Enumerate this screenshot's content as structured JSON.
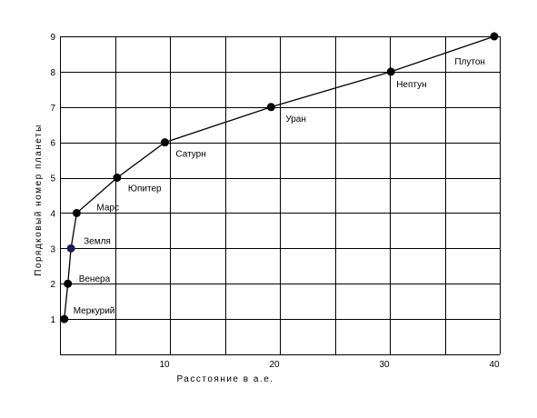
{
  "chart_data": {
    "type": "line",
    "title": "",
    "xlabel": "Расстояние в а.е.",
    "ylabel": "Порядковый номер планеты",
    "xlim": [
      0,
      40
    ],
    "ylim": [
      0,
      9
    ],
    "x_tick_labels": [
      "10",
      "20",
      "30",
      "40"
    ],
    "y_tick_labels": [
      "1",
      "2",
      "3",
      "4",
      "5",
      "6",
      "7",
      "8",
      "9"
    ],
    "grid": true,
    "series": [
      {
        "points": [
          {
            "label": "Меркурий",
            "x": 0.39,
            "y": 1
          },
          {
            "label": "Венера",
            "x": 0.72,
            "y": 2
          },
          {
            "label": "Земля",
            "x": 1.0,
            "y": 3
          },
          {
            "label": "Марс",
            "x": 1.52,
            "y": 4
          },
          {
            "label": "Юпитер",
            "x": 5.2,
            "y": 5
          },
          {
            "label": "Сатурн",
            "x": 9.54,
            "y": 6
          },
          {
            "label": "Уран",
            "x": 19.2,
            "y": 7
          },
          {
            "label": "Нептун",
            "x": 30.1,
            "y": 8
          },
          {
            "label": "Плутон",
            "x": 39.5,
            "y": 9
          }
        ]
      }
    ],
    "colors": {
      "line": "#000000",
      "point": "#000000",
      "point_earth": "#1a1a5a",
      "grid": "#000000"
    }
  }
}
